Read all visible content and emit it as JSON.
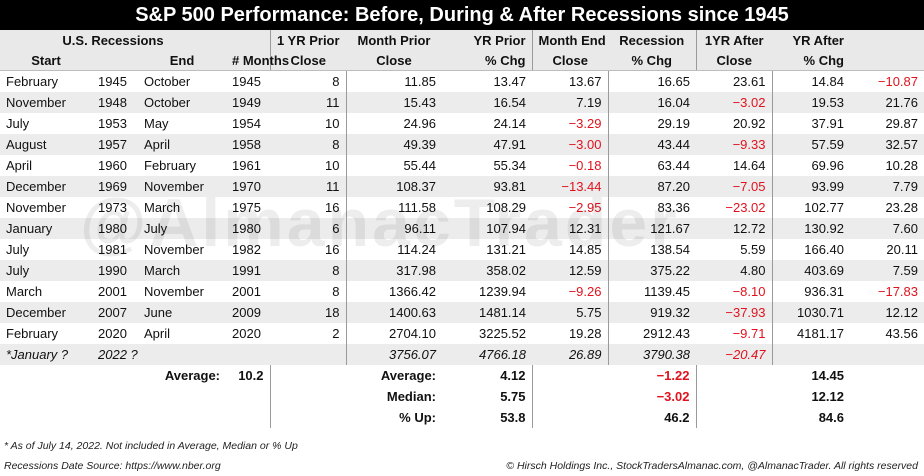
{
  "title": "S&P 500 Performance: Before, During & After Recessions since 1945",
  "header": {
    "group_recessions": "U.S. Recessions",
    "start": "Start",
    "end": "End",
    "months": "# Months",
    "yr_prior_close_1": "1 YR Prior",
    "yr_prior_close_2": "Close",
    "month_prior_close_1": "Month Prior",
    "month_prior_close_2": "Close",
    "yr_prior_chg_1": "YR Prior",
    "yr_prior_chg_2": "% Chg",
    "month_end_close_1": "Month End",
    "month_end_close_2": "Close",
    "recession_chg_1": "Recession",
    "recession_chg_2": "% Chg",
    "yr_after_close_1": "1YR After",
    "yr_after_close_2": "Close",
    "yr_after_chg_1": "YR After",
    "yr_after_chg_2": "% Chg"
  },
  "rows": [
    {
      "start_month": "February",
      "start_year": "1945",
      "end_month": "October",
      "end_year": "1945",
      "months": "8",
      "yr_prior_close": "11.85",
      "month_prior_close": "13.47",
      "yr_prior_chg": "13.67",
      "month_end_close": "16.65",
      "recession_chg": "23.61",
      "yr_after_close": "14.84",
      "yr_after_chg": "−10.87"
    },
    {
      "start_month": "November",
      "start_year": "1948",
      "end_month": "October",
      "end_year": "1949",
      "months": "11",
      "yr_prior_close": "15.43",
      "month_prior_close": "16.54",
      "yr_prior_chg": "7.19",
      "month_end_close": "16.04",
      "recession_chg": "−3.02",
      "yr_after_close": "19.53",
      "yr_after_chg": "21.76"
    },
    {
      "start_month": "July",
      "start_year": "1953",
      "end_month": "May",
      "end_year": "1954",
      "months": "10",
      "yr_prior_close": "24.96",
      "month_prior_close": "24.14",
      "yr_prior_chg": "−3.29",
      "month_end_close": "29.19",
      "recession_chg": "20.92",
      "yr_after_close": "37.91",
      "yr_after_chg": "29.87"
    },
    {
      "start_month": "August",
      "start_year": "1957",
      "end_month": "April",
      "end_year": "1958",
      "months": "8",
      "yr_prior_close": "49.39",
      "month_prior_close": "47.91",
      "yr_prior_chg": "−3.00",
      "month_end_close": "43.44",
      "recession_chg": "−9.33",
      "yr_after_close": "57.59",
      "yr_after_chg": "32.57"
    },
    {
      "start_month": "April",
      "start_year": "1960",
      "end_month": "February",
      "end_year": "1961",
      "months": "10",
      "yr_prior_close": "55.44",
      "month_prior_close": "55.34",
      "yr_prior_chg": "−0.18",
      "month_end_close": "63.44",
      "recession_chg": "14.64",
      "yr_after_close": "69.96",
      "yr_after_chg": "10.28"
    },
    {
      "start_month": "December",
      "start_year": "1969",
      "end_month": "November",
      "end_year": "1970",
      "months": "11",
      "yr_prior_close": "108.37",
      "month_prior_close": "93.81",
      "yr_prior_chg": "−13.44",
      "month_end_close": "87.20",
      "recession_chg": "−7.05",
      "yr_after_close": "93.99",
      "yr_after_chg": "7.79"
    },
    {
      "start_month": "November",
      "start_year": "1973",
      "end_month": "March",
      "end_year": "1975",
      "months": "16",
      "yr_prior_close": "111.58",
      "month_prior_close": "108.29",
      "yr_prior_chg": "−2.95",
      "month_end_close": "83.36",
      "recession_chg": "−23.02",
      "yr_after_close": "102.77",
      "yr_after_chg": "23.28"
    },
    {
      "start_month": "January",
      "start_year": "1980",
      "end_month": "July",
      "end_year": "1980",
      "months": "6",
      "yr_prior_close": "96.11",
      "month_prior_close": "107.94",
      "yr_prior_chg": "12.31",
      "month_end_close": "121.67",
      "recession_chg": "12.72",
      "yr_after_close": "130.92",
      "yr_after_chg": "7.60"
    },
    {
      "start_month": "July",
      "start_year": "1981",
      "end_month": "November",
      "end_year": "1982",
      "months": "16",
      "yr_prior_close": "114.24",
      "month_prior_close": "131.21",
      "yr_prior_chg": "14.85",
      "month_end_close": "138.54",
      "recession_chg": "5.59",
      "yr_after_close": "166.40",
      "yr_after_chg": "20.11"
    },
    {
      "start_month": "July",
      "start_year": "1990",
      "end_month": "March",
      "end_year": "1991",
      "months": "8",
      "yr_prior_close": "317.98",
      "month_prior_close": "358.02",
      "yr_prior_chg": "12.59",
      "month_end_close": "375.22",
      "recession_chg": "4.80",
      "yr_after_close": "403.69",
      "yr_after_chg": "7.59"
    },
    {
      "start_month": "March",
      "start_year": "2001",
      "end_month": "November",
      "end_year": "2001",
      "months": "8",
      "yr_prior_close": "1366.42",
      "month_prior_close": "1239.94",
      "yr_prior_chg": "−9.26",
      "month_end_close": "1139.45",
      "recession_chg": "−8.10",
      "yr_after_close": "936.31",
      "yr_after_chg": "−17.83"
    },
    {
      "start_month": "December",
      "start_year": "2007",
      "end_month": "June",
      "end_year": "2009",
      "months": "18",
      "yr_prior_close": "1400.63",
      "month_prior_close": "1481.14",
      "yr_prior_chg": "5.75",
      "month_end_close": "919.32",
      "recession_chg": "−37.93",
      "yr_after_close": "1030.71",
      "yr_after_chg": "12.12"
    },
    {
      "start_month": "February",
      "start_year": "2020",
      "end_month": "April",
      "end_year": "2020",
      "months": "2",
      "yr_prior_close": "2704.10",
      "month_prior_close": "3225.52",
      "yr_prior_chg": "19.28",
      "month_end_close": "2912.43",
      "recession_chg": "−9.71",
      "yr_after_close": "4181.17",
      "yr_after_chg": "43.56"
    }
  ],
  "estimate_row": {
    "start_month": "*January ?",
    "year_text": "2022 ?",
    "yr_prior_close": "3756.07",
    "month_prior_close": "4766.18",
    "yr_prior_chg": "26.89",
    "month_end_close": "3790.38",
    "recession_chg": "−20.47"
  },
  "summary": {
    "average_label": "Average:",
    "average_months": "10.2",
    "average_label2": "Average:",
    "average_yr_prior_chg": "4.12",
    "average_recession_chg": "−1.22",
    "average_yr_after_chg": "14.45",
    "median_label": "Median:",
    "median_yr_prior_chg": "5.75",
    "median_recession_chg": "−3.02",
    "median_yr_after_chg": "12.12",
    "pct_up_label": "% Up:",
    "pct_up_yr_prior_chg": "53.8",
    "pct_up_recession_chg": "46.2",
    "pct_up_yr_after_chg": "84.6"
  },
  "footnote_1": "* As of July 14, 2022. Not included in Average, Median or % Up",
  "footnote_2": "Recessions Date Source: https://www.nber.org",
  "credit": "© Hirsch Holdings Inc., StockTradersAlmanac.com, @AlmanacTrader. All rights reserved",
  "watermark": "@AlmanacTrader",
  "colors": {
    "negative": "#e1121d",
    "title_bg": "#000000",
    "band": "#ececec"
  }
}
